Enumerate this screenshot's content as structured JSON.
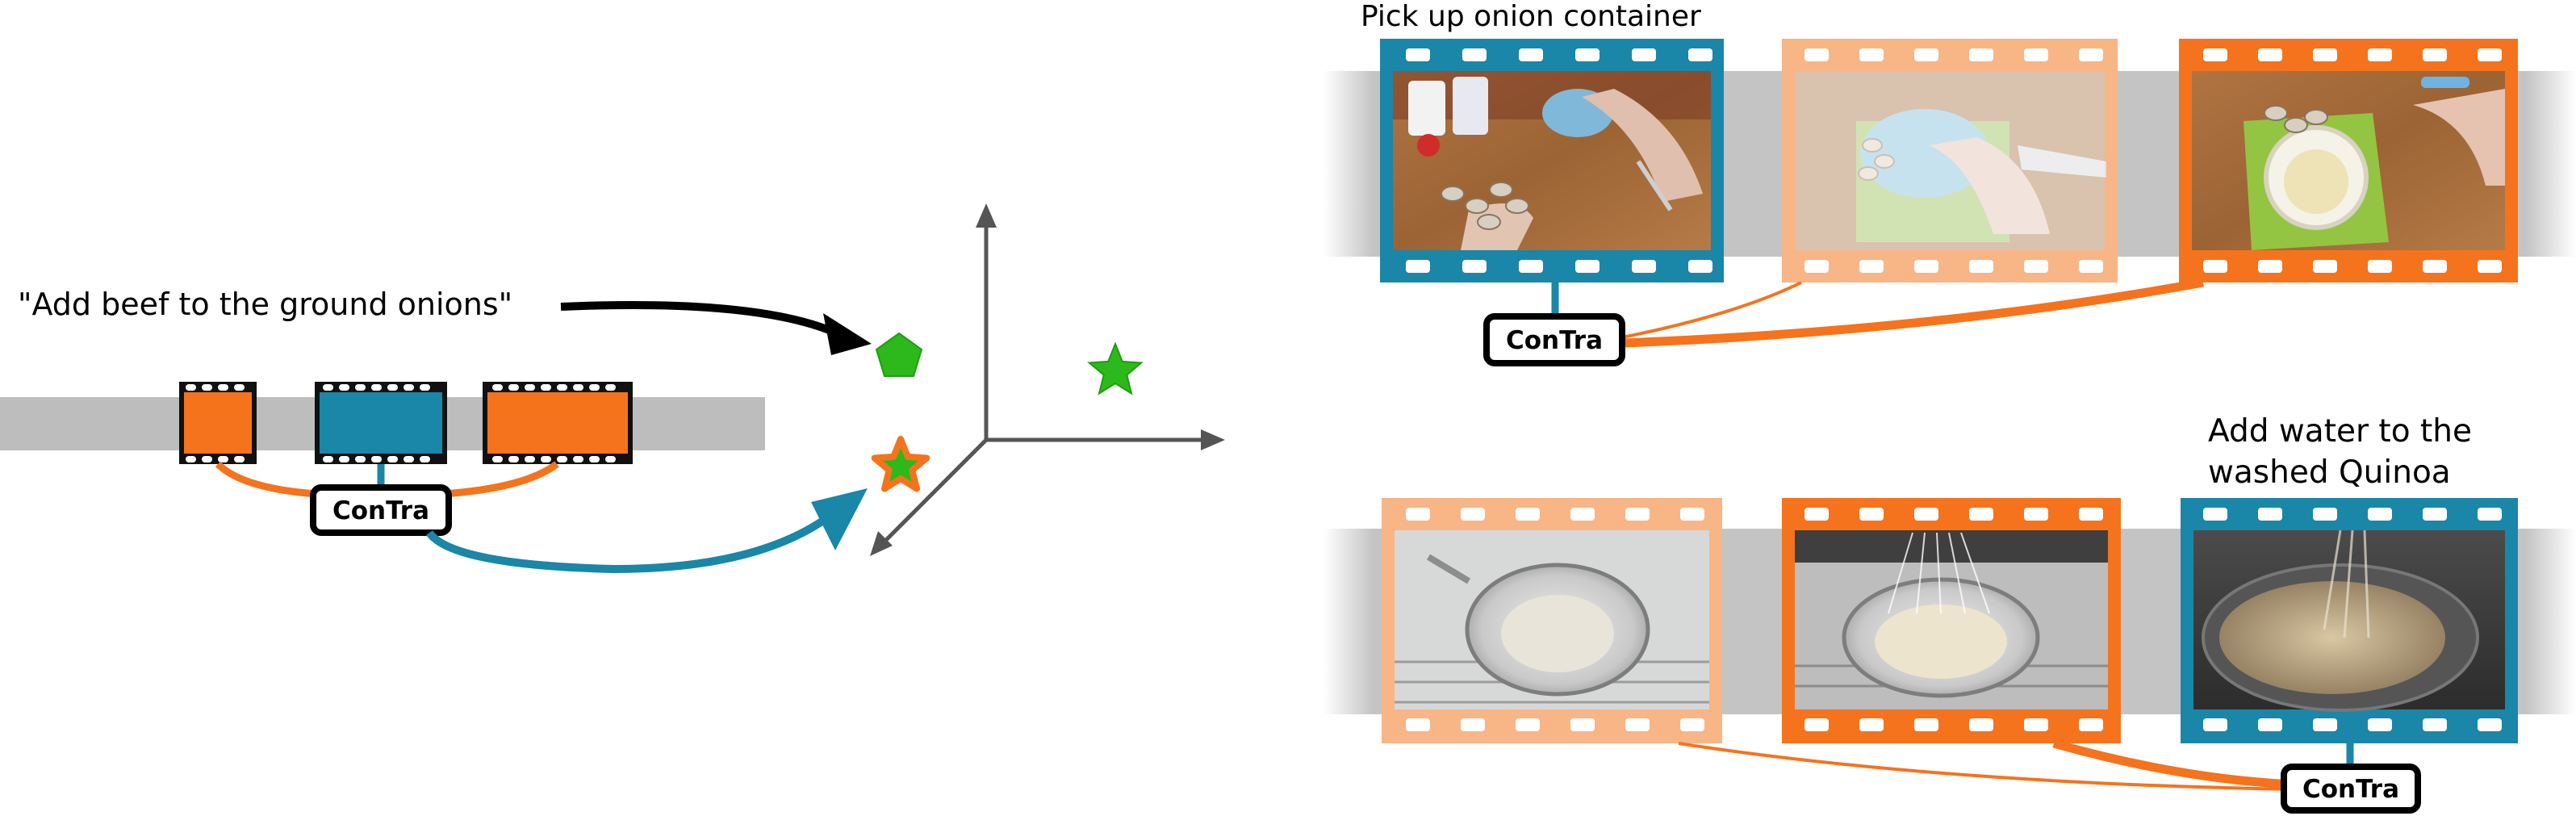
{
  "left_panel": {
    "text_query": "\"Add beef to the ground onions\"",
    "model_label": "ConTra"
  },
  "top_right_panel": {
    "caption": "Pick up onion container",
    "model_label": "ConTra"
  },
  "bottom_right_panel": {
    "caption_line1": "Add water to the",
    "caption_line2": "washed Quinoa",
    "model_label": "ConTra"
  },
  "colors": {
    "teal": "#1a86a8",
    "orange": "#f5731d",
    "light_orange": "#f8b586",
    "green": "#2db81c",
    "gray_band": "#bdbdbd",
    "axis": "#555555"
  }
}
